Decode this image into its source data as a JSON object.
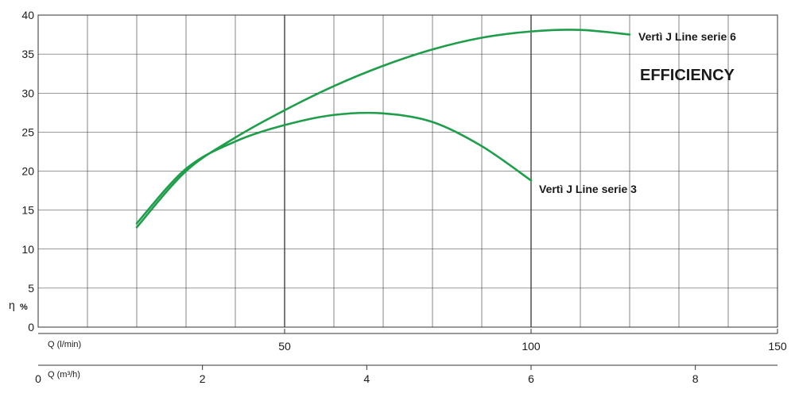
{
  "chart_data": {
    "type": "line",
    "title": "EFFICIENCY",
    "ylabel": "η",
    "ylabel_unit": "%",
    "ylim": [
      0,
      40
    ],
    "y_ticks": [
      "0",
      "5",
      "10",
      "15",
      "20",
      "25",
      "30",
      "35",
      "40"
    ],
    "x_axes": [
      {
        "name": "Q (l/min)",
        "range": [
          0,
          150
        ],
        "ticks": [
          "50",
          "100",
          "150"
        ]
      },
      {
        "name": "Q (m³/h)",
        "range": [
          0,
          9
        ],
        "ticks": [
          "0",
          "2",
          "4",
          "6",
          "8"
        ]
      }
    ],
    "grid": true,
    "series": [
      {
        "name": "Vertì J Line serie 6",
        "x": [
          20,
          30,
          40,
          50,
          60,
          70,
          80,
          90,
          100,
          110,
          120
        ],
        "y": [
          12.8,
          20.0,
          24.3,
          27.8,
          30.9,
          33.5,
          35.6,
          37.1,
          37.9,
          38.1,
          37.5
        ]
      },
      {
        "name": "Vertì J Line serie 3",
        "x": [
          20,
          30,
          40,
          50,
          60,
          70,
          80,
          90,
          100
        ],
        "y": [
          13.3,
          20.3,
          23.8,
          25.9,
          27.2,
          27.4,
          26.3,
          23.2,
          18.8
        ]
      }
    ],
    "colors": {
      "series": "#1e9e4a",
      "grid": "#333333"
    }
  }
}
